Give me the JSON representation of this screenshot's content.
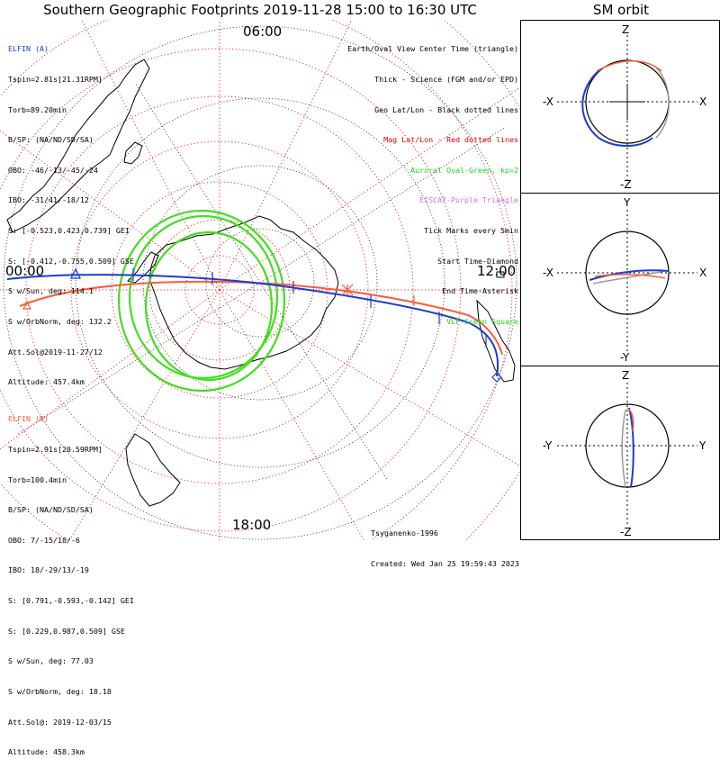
{
  "title": "Southern Geographic Footprints 2019-11-28 15:00 to 16:30 UTC",
  "side_title": "SM orbit",
  "clock_labels": {
    "top": "06:00",
    "left": "00:00",
    "right": "12:00",
    "bottom": "18:00"
  },
  "elfin_a": {
    "header": "ELFIN (A)",
    "lines": [
      "Tspin=2.81s[21.31RPM]",
      "Torb=89.20min",
      "B/SP: (NA/ND/SD/SA)",
      "OBO: -46/-13/-45/-24",
      "IBO: -31/41/-18/12",
      "S: [-0.523,0.423,0.739] GEI",
      "S: [-0.412,-0.755,0.509] GSE",
      "S w/Sun, deg: 114.1",
      "S w/OrbNorm, deg: 132.2",
      "Att.Sol@2019-11-27/12",
      "Altitude: 457.4km"
    ],
    "color": "#1a3cd4"
  },
  "elfin_b": {
    "header": "ELFIN (B)",
    "lines": [
      "Tspin=2.91s[20.59RPM]",
      "Torb=100.4min",
      "B/SP: (NA/ND/SD/SA)",
      "OBO: 7/-15/18/-6",
      "IBO: 18/-29/13/-19",
      "S: [0.791,-0.593,-0.142] GEI",
      "S: [0.229,0.987,0.509] GSE",
      "S w/Sun, deg: 77.03",
      "S w/OrbNorm, deg: 18.18",
      "Att.Sol@: 2019-12-03/15",
      "Altitude: 458.3km"
    ],
    "color": "#ff5a3a"
  },
  "legend": [
    {
      "text": "Earth/Oval View Center Time (triangle)",
      "color": "#000000"
    },
    {
      "text": "Thick - Science (FGM and/or EPD)",
      "color": "#000000"
    },
    {
      "text": "Geo Lat/Lon - Black dotted lines",
      "color": "#000000"
    },
    {
      "text": "Mag Lat/Lon - Red dotted lines",
      "color": "#e00000"
    },
    {
      "text": "Auroral Oval-Green, kp=2",
      "color": "#22cc22"
    },
    {
      "text": "EISCAT-Purple Triangle",
      "color": "#d070e0"
    },
    {
      "text": "Tick Marks every 5min",
      "color": "#000000"
    },
    {
      "text": "Start Time-Diamond",
      "color": "#000000"
    },
    {
      "text": "End Time-Asterisk",
      "color": "#000000"
    },
    {
      "text": "VLF-Green Square",
      "color": "#22cc22"
    }
  ],
  "credits": [
    "Tsyganenko-1996",
    "Created: Wed Jan 25 19:59:43 2023"
  ],
  "panels": {
    "xz": {
      "top": "Z",
      "bottom": "-Z",
      "left": "-X",
      "right": "X"
    },
    "xy": {
      "top": "Y",
      "bottom": "-Y",
      "left": "-X",
      "right": "X"
    },
    "yz": {
      "top": "Z",
      "bottom": "-Z",
      "left": "-Y",
      "right": "Y"
    }
  },
  "colors": {
    "elfin_a": "#1a3cd4",
    "elfin_b": "#ff5a3a",
    "oval": "#44dd22",
    "mag_grid": "#e02020",
    "geo_grid": "#000000"
  }
}
